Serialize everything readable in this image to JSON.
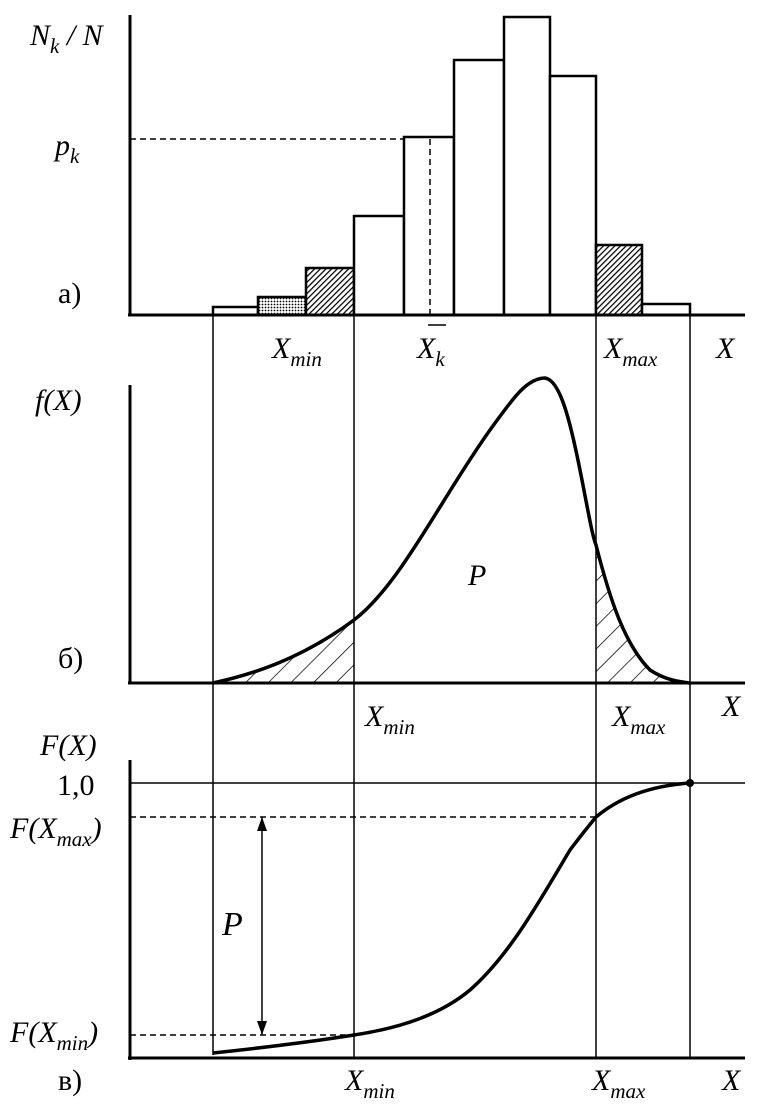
{
  "panel_a": {
    "marker": "а)",
    "y_label": {
      "base": "N",
      "sub": "k",
      "rest": " / N"
    },
    "p_label": {
      "base": "p",
      "sub": "k"
    },
    "x_min": {
      "base": "X",
      "sub": "min"
    },
    "x_k": {
      "base": "X",
      "sub": "k"
    },
    "x_max": {
      "base": "X",
      "sub": "max"
    },
    "x_axis": "X"
  },
  "panel_b": {
    "marker": "б)",
    "y_label": "f(X)",
    "area_label": "P",
    "x_min": {
      "base": "X",
      "sub": "min"
    },
    "x_max": {
      "base": "X",
      "sub": "max"
    },
    "x_axis": "X"
  },
  "panel_c": {
    "marker": "в)",
    "y_label": "F(X)",
    "one": "1,0",
    "f_max": {
      "base": "F(X",
      "sub": "max",
      "rest": ")"
    },
    "f_min": {
      "base": "F(X",
      "sub": "min",
      "rest": ")"
    },
    "area_label": "P",
    "x_min": {
      "base": "X",
      "sub": "min"
    },
    "x_max": {
      "base": "X",
      "sub": "max"
    },
    "x_axis": "X"
  }
}
